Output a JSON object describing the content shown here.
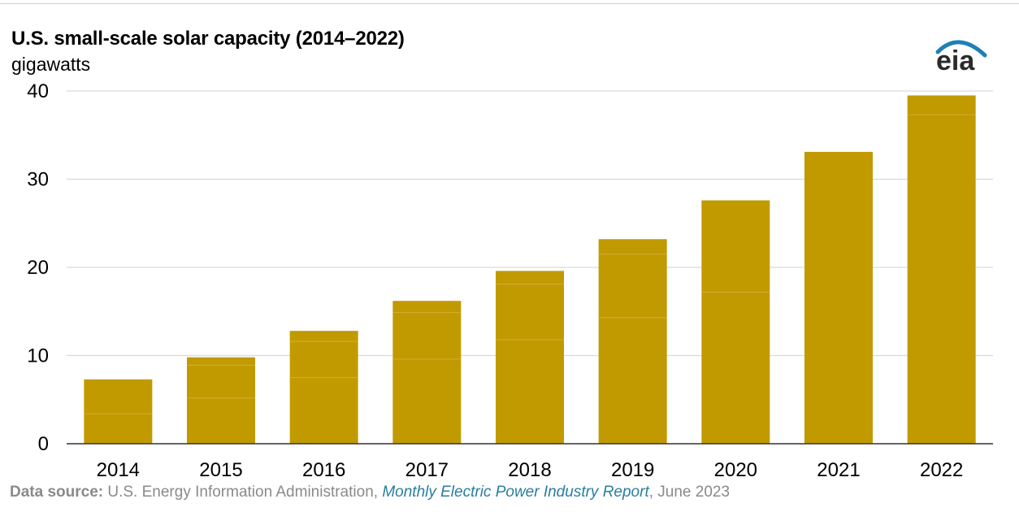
{
  "colors": {
    "bar": "#c19a00",
    "bar_segment_line": "#cfae3c",
    "grid": "#d9d9d9",
    "axis": "#333333",
    "logo_arc": "#1f7fb7"
  },
  "logo": {
    "text": "eia",
    "icon": "eia-logo-icon"
  },
  "source": {
    "label": "Data source:",
    "agency": " U.S. Energy Information Administration, ",
    "report": "Monthly Electric Power Industry Report",
    "date": ", June 2023"
  },
  "chart_data": {
    "type": "bar",
    "title": "U.S. small-scale solar capacity (2014–2022)",
    "ylabel": "gigawatts",
    "xlabel": "",
    "categories": [
      "2014",
      "2015",
      "2016",
      "2017",
      "2018",
      "2019",
      "2020",
      "2021",
      "2022"
    ],
    "values": [
      7.3,
      9.8,
      12.8,
      16.2,
      19.6,
      23.2,
      27.6,
      33.1,
      39.5
    ],
    "segments": [
      [
        3.4
      ],
      [
        5.2,
        8.9
      ],
      [
        7.5,
        11.6
      ],
      [
        9.6,
        14.9
      ],
      [
        11.8,
        18.1
      ],
      [
        14.3,
        21.5
      ],
      [
        17.2
      ],
      [],
      [
        37.3
      ]
    ],
    "ylim": [
      0,
      40
    ],
    "yticks": [
      "0",
      "10",
      "20",
      "30",
      "40"
    ],
    "ytick_values": [
      0,
      10,
      20,
      30,
      40
    ],
    "grid": true,
    "legend": "none"
  }
}
